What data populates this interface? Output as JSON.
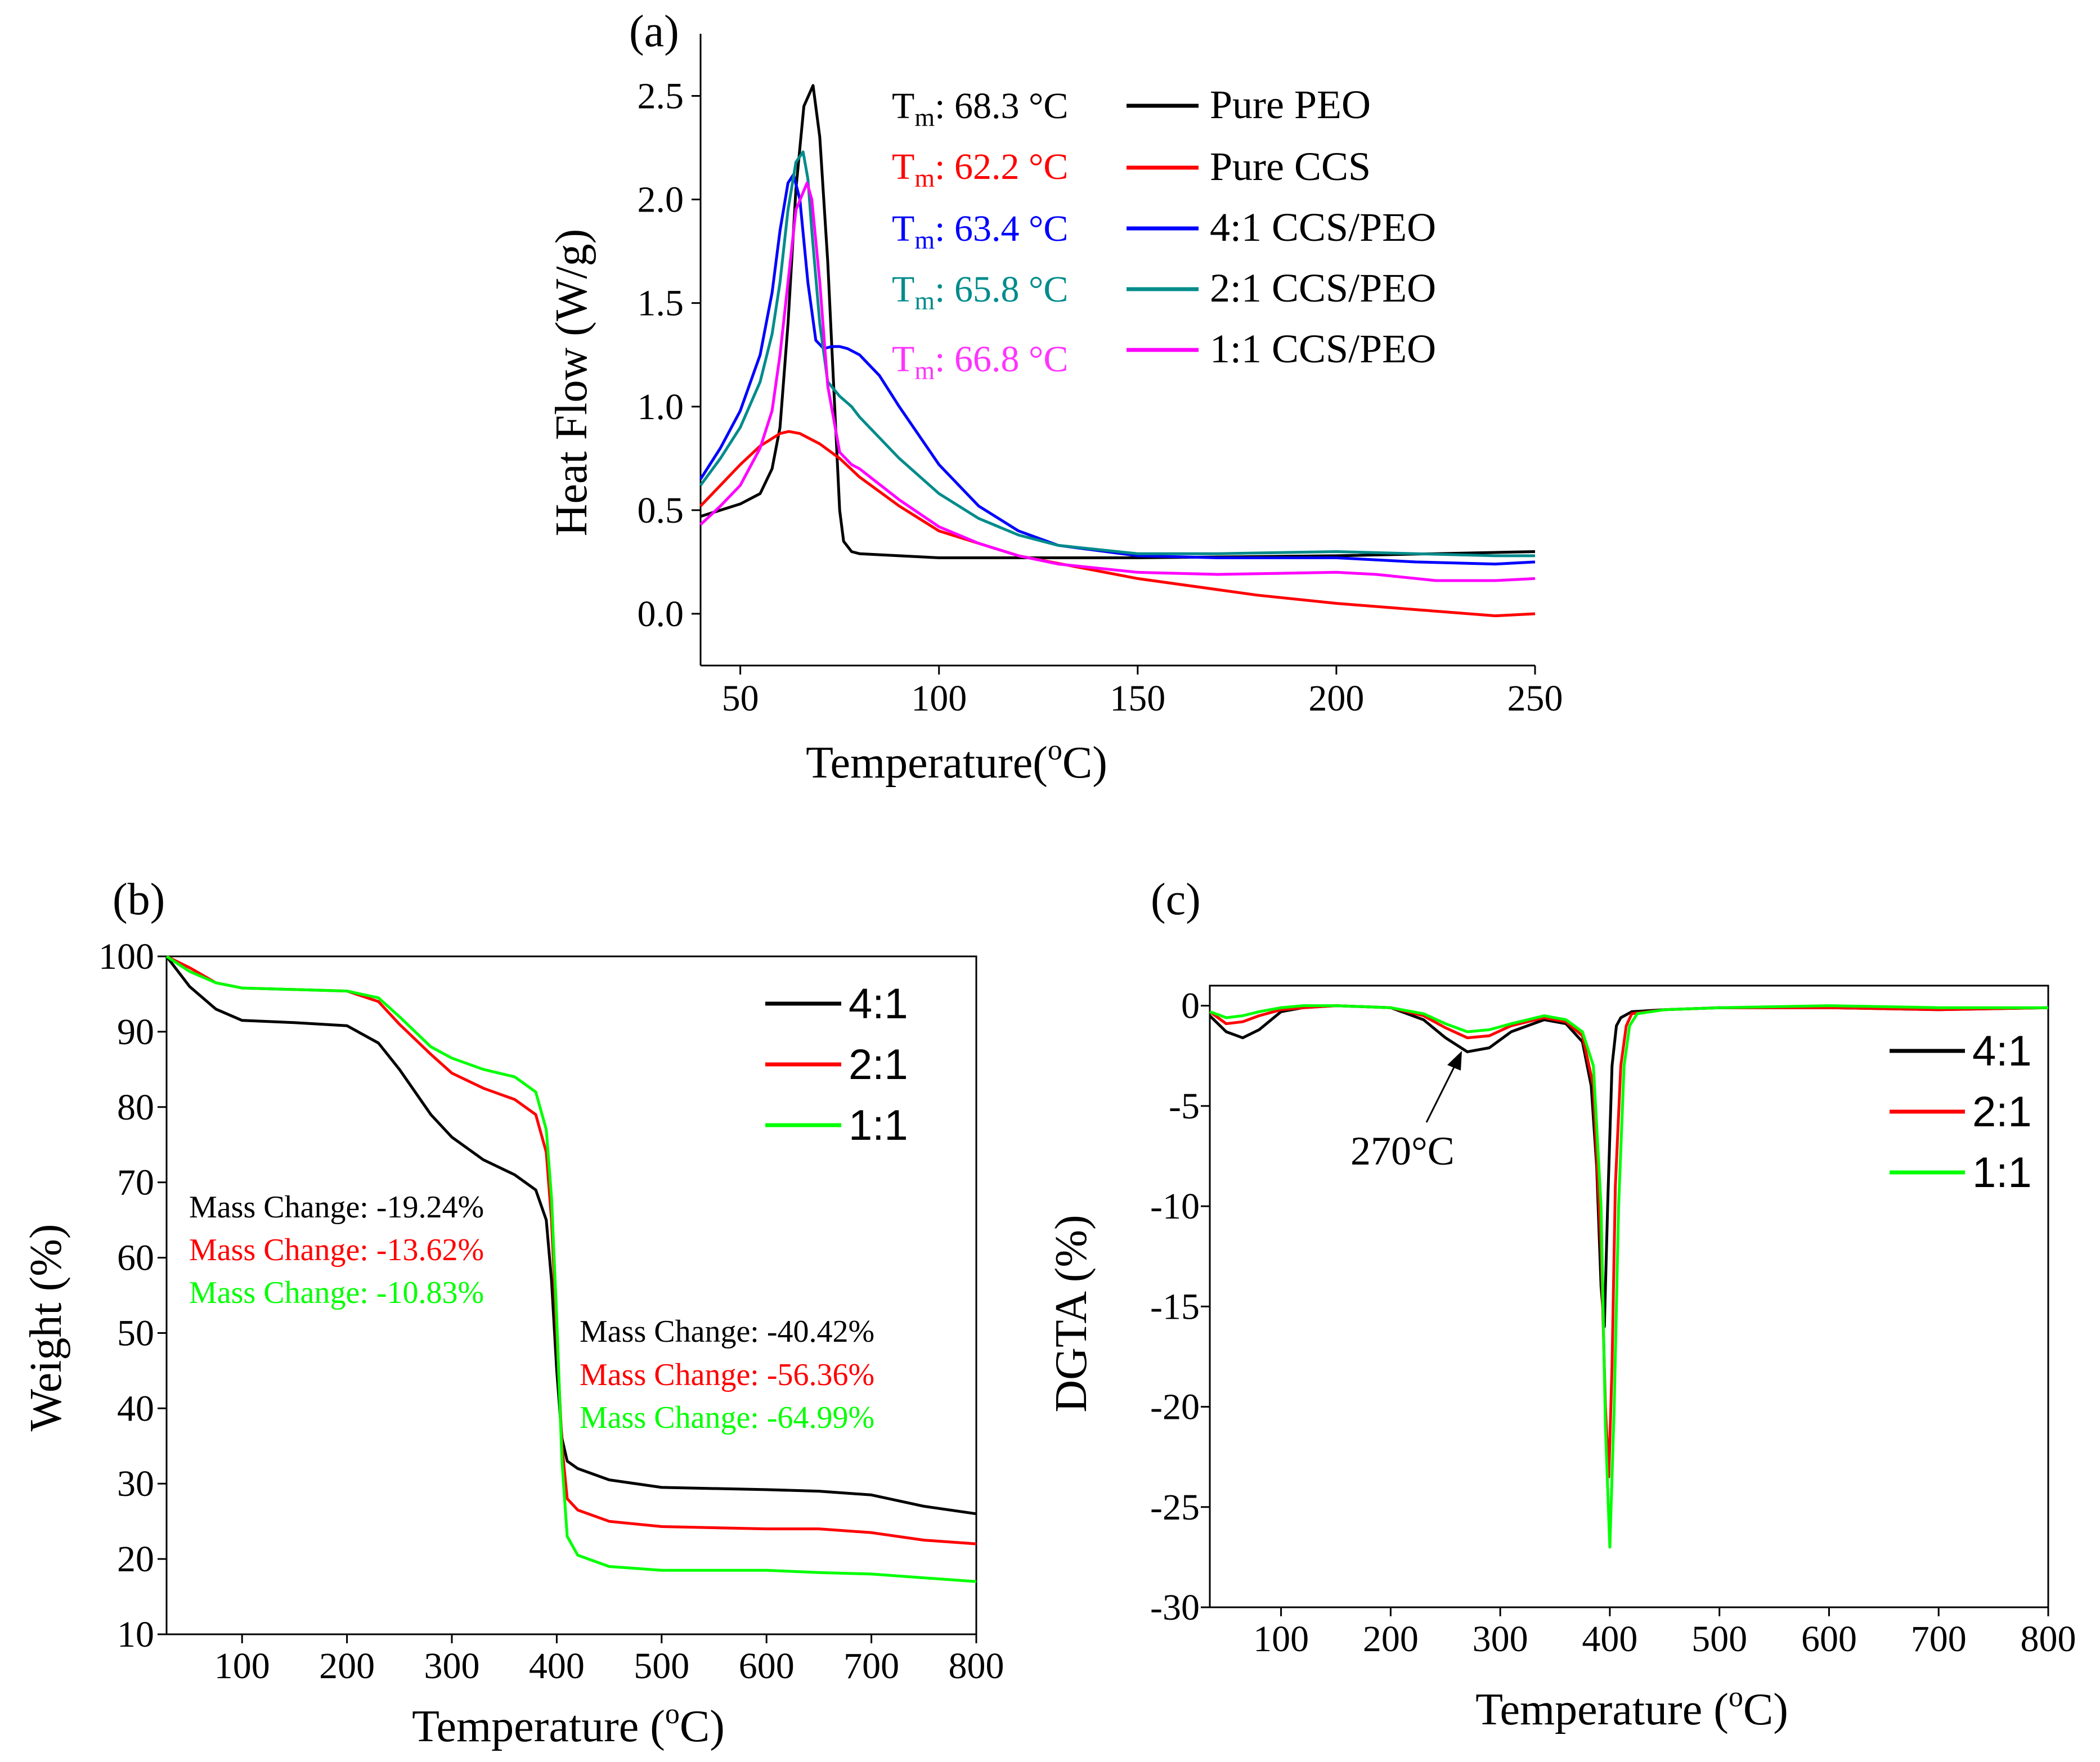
{
  "chart_data": [
    {
      "type": "line",
      "panel_label": "(a)",
      "xlabel": "Temperature(",
      "xlabel_sup": "o",
      "xlabel_tail": "C)",
      "ylabel": "Heat Flow (W/g)",
      "xlim": [
        40,
        250
      ],
      "ylim": [
        -0.25,
        2.8
      ],
      "xticks": [
        50,
        100,
        150,
        200,
        250
      ],
      "yticks": [
        0.0,
        0.5,
        1.0,
        1.5,
        2.0,
        2.5
      ],
      "ytick_labels": [
        "0.0",
        "0.5",
        "1.0",
        "1.5",
        "2.0",
        "2.5"
      ],
      "legend_position": "top-right",
      "annotations": [
        {
          "base": "T",
          "sub": "m",
          "text": ": 68.3 °C",
          "color": "#000000"
        },
        {
          "base": "T",
          "sub": "m",
          "text": ": 62.2 °C",
          "color": "#ff0000"
        },
        {
          "base": "T",
          "sub": "m",
          "text": ": 63.4 °C",
          "color": "#0000ff"
        },
        {
          "base": "T",
          "sub": "m",
          "text": ": 65.8 °C",
          "color": "#008b8b"
        },
        {
          "base": "T",
          "sub": "m",
          "text": ": 66.8 °C",
          "color": "#ff33ff"
        }
      ],
      "series": [
        {
          "name": "Pure PEO",
          "color": "#000000",
          "x": [
            40,
            50,
            55,
            58,
            60,
            62,
            64,
            66,
            68.3,
            70,
            72,
            74,
            75,
            76,
            78,
            80,
            90,
            100,
            120,
            150,
            200,
            250
          ],
          "y": [
            0.47,
            0.53,
            0.58,
            0.7,
            0.9,
            1.4,
            2.05,
            2.45,
            2.55,
            2.3,
            1.7,
            0.9,
            0.5,
            0.35,
            0.3,
            0.29,
            0.28,
            0.27,
            0.27,
            0.27,
            0.28,
            0.3
          ]
        },
        {
          "name": "Pure CCS",
          "color": "#ff0000",
          "x": [
            40,
            45,
            50,
            55,
            60,
            62.2,
            65,
            70,
            75,
            80,
            90,
            100,
            120,
            150,
            180,
            200,
            220,
            240,
            250
          ],
          "y": [
            0.52,
            0.62,
            0.72,
            0.81,
            0.87,
            0.88,
            0.87,
            0.82,
            0.75,
            0.66,
            0.52,
            0.4,
            0.28,
            0.17,
            0.09,
            0.05,
            0.02,
            -0.01,
            0.0
          ]
        },
        {
          "name": "4:1 CCS/PEO",
          "color": "#0000ff",
          "x": [
            40,
            45,
            50,
            55,
            58,
            60,
            62,
            63.4,
            65,
            67,
            69,
            71,
            73,
            75,
            77,
            80,
            85,
            90,
            100,
            110,
            120,
            130,
            150,
            170,
            200,
            220,
            240,
            250
          ],
          "y": [
            0.65,
            0.8,
            0.98,
            1.25,
            1.55,
            1.85,
            2.08,
            2.12,
            2.0,
            1.6,
            1.32,
            1.28,
            1.29,
            1.29,
            1.28,
            1.25,
            1.15,
            1.0,
            0.72,
            0.52,
            0.4,
            0.33,
            0.28,
            0.27,
            0.27,
            0.25,
            0.24,
            0.25
          ]
        },
        {
          "name": "2:1 CCS/PEO",
          "color": "#008b8b",
          "x": [
            40,
            45,
            50,
            55,
            58,
            60,
            62,
            64,
            65.8,
            67,
            68,
            70,
            72,
            75,
            78,
            80,
            90,
            100,
            110,
            120,
            130,
            150,
            170,
            200,
            220,
            240,
            250
          ],
          "y": [
            0.62,
            0.75,
            0.9,
            1.12,
            1.35,
            1.6,
            1.95,
            2.18,
            2.23,
            2.1,
            1.85,
            1.4,
            1.12,
            1.05,
            1.0,
            0.95,
            0.75,
            0.58,
            0.46,
            0.38,
            0.33,
            0.29,
            0.29,
            0.3,
            0.29,
            0.28,
            0.28
          ]
        },
        {
          "name": "1:1 CCS/PEO",
          "color": "#ff00ff",
          "x": [
            40,
            45,
            50,
            55,
            58,
            60,
            62,
            64,
            66.8,
            68,
            70,
            72,
            75,
            78,
            80,
            90,
            100,
            110,
            120,
            130,
            150,
            170,
            200,
            210,
            225,
            240,
            250
          ],
          "y": [
            0.43,
            0.52,
            0.62,
            0.8,
            0.98,
            1.25,
            1.6,
            1.95,
            2.08,
            2.0,
            1.6,
            1.1,
            0.78,
            0.72,
            0.7,
            0.55,
            0.42,
            0.34,
            0.28,
            0.24,
            0.2,
            0.19,
            0.2,
            0.19,
            0.16,
            0.16,
            0.17
          ]
        }
      ]
    },
    {
      "type": "line",
      "panel_label": "(b)",
      "xlabel": "Temperature (",
      "xlabel_sup": "o",
      "xlabel_tail": "C)",
      "ylabel": "Weight (%)",
      "xlim": [
        28,
        800
      ],
      "ylim": [
        10,
        100
      ],
      "xticks": [
        100,
        200,
        300,
        400,
        500,
        600,
        700,
        800
      ],
      "yticks": [
        10,
        20,
        30,
        40,
        50,
        60,
        70,
        80,
        90,
        100
      ],
      "legend_position": "top-right",
      "annotations": [
        {
          "text": "Mass Change: -19.24%",
          "color": "#000000"
        },
        {
          "text": "Mass Change: -13.62%",
          "color": "#ff0000"
        },
        {
          "text": "Mass Change: -10.83%",
          "color": "#00ff00"
        },
        {
          "text": "Mass Change: -40.42%",
          "color": "#000000"
        },
        {
          "text": "Mass Change: -56.36%",
          "color": "#ff0000"
        },
        {
          "text": "Mass Change: -64.99%",
          "color": "#00ff00"
        }
      ],
      "series": [
        {
          "name": "4:1",
          "color": "#000000",
          "x": [
            28,
            50,
            75,
            100,
            150,
            200,
            230,
            250,
            280,
            300,
            330,
            360,
            380,
            390,
            395,
            400,
            405,
            410,
            420,
            450,
            500,
            600,
            650,
            700,
            750,
            800
          ],
          "y": [
            100,
            96,
            93,
            91.5,
            91.2,
            90.8,
            88.5,
            85,
            79,
            76,
            73,
            71,
            69,
            65,
            57,
            45,
            36,
            33,
            32,
            30.5,
            29.5,
            29.2,
            29,
            28.5,
            27,
            26
          ]
        },
        {
          "name": "2:1",
          "color": "#ff0000",
          "x": [
            28,
            50,
            75,
            100,
            150,
            200,
            230,
            250,
            280,
            300,
            330,
            360,
            380,
            390,
            395,
            400,
            405,
            410,
            420,
            450,
            500,
            600,
            650,
            700,
            750,
            800
          ],
          "y": [
            100,
            98.5,
            96.5,
            95.8,
            95.6,
            95.4,
            94,
            91,
            87,
            84.5,
            82.5,
            81,
            79,
            74,
            65,
            50,
            35,
            28,
            26.5,
            25,
            24.3,
            24,
            24,
            23.5,
            22.5,
            22
          ]
        },
        {
          "name": "1:1",
          "color": "#00ff00",
          "x": [
            28,
            50,
            75,
            100,
            150,
            200,
            230,
            250,
            280,
            300,
            330,
            360,
            380,
            390,
            395,
            400,
            405,
            410,
            420,
            450,
            500,
            600,
            650,
            700,
            750,
            800
          ],
          "y": [
            100,
            98,
            96.5,
            95.8,
            95.6,
            95.4,
            94.5,
            92,
            88,
            86.5,
            85,
            84,
            82,
            77,
            68,
            52,
            33,
            23,
            20.5,
            19,
            18.5,
            18.5,
            18.2,
            18,
            17.5,
            17
          ]
        }
      ],
      "legend": [
        "4:1",
        "2:1",
        "1:1"
      ]
    },
    {
      "type": "line",
      "panel_label": "(c)",
      "xlabel": "Temperature (",
      "xlabel_sup": "o",
      "xlabel_tail": "C)",
      "ylabel": "DGTA (%)",
      "xlim": [
        35,
        800
      ],
      "ylim": [
        -30,
        1
      ],
      "xticks": [
        100,
        200,
        300,
        400,
        500,
        600,
        700,
        800
      ],
      "yticks": [
        0,
        -5,
        -10,
        -15,
        -20,
        -25,
        -30
      ],
      "ytick_labels": [
        "0",
        "-5",
        "-10",
        "-15",
        "-20",
        "-25",
        "-30"
      ],
      "legend_position": "right",
      "annotations": [
        {
          "text": "270°C",
          "color": "#000000",
          "x": 270,
          "y": -2.5
        }
      ],
      "series": [
        {
          "name": "4:1",
          "color": "#000000",
          "x": [
            35,
            50,
            65,
            80,
            100,
            120,
            150,
            200,
            230,
            250,
            270,
            290,
            310,
            340,
            360,
            375,
            383,
            388,
            392,
            395,
            398,
            402,
            406,
            410,
            420,
            450,
            500,
            600,
            700,
            800
          ],
          "y": [
            -0.5,
            -1.3,
            -1.6,
            -1.2,
            -0.3,
            -0.1,
            0,
            -0.1,
            -0.7,
            -1.6,
            -2.3,
            -2.1,
            -1.3,
            -0.7,
            -0.9,
            -1.8,
            -4,
            -8,
            -14,
            -16,
            -10,
            -3,
            -1,
            -0.6,
            -0.3,
            -0.2,
            -0.1,
            -0.1,
            -0.2,
            -0.1
          ]
        },
        {
          "name": "2:1",
          "color": "#ff0000",
          "x": [
            35,
            50,
            65,
            80,
            100,
            120,
            150,
            200,
            230,
            250,
            270,
            290,
            310,
            340,
            360,
            375,
            385,
            392,
            396,
            399,
            402,
            405,
            410,
            415,
            420,
            450,
            500,
            600,
            700,
            800
          ],
          "y": [
            -0.3,
            -0.9,
            -0.8,
            -0.5,
            -0.2,
            -0.1,
            0,
            -0.1,
            -0.5,
            -1.1,
            -1.6,
            -1.5,
            -1.0,
            -0.6,
            -0.8,
            -1.5,
            -4,
            -12,
            -20,
            -23.5,
            -18,
            -9,
            -3,
            -1,
            -0.4,
            -0.2,
            -0.1,
            -0.1,
            -0.2,
            -0.1
          ]
        },
        {
          "name": "1:1",
          "color": "#00ff00",
          "x": [
            35,
            50,
            65,
            80,
            100,
            120,
            150,
            200,
            230,
            250,
            270,
            290,
            310,
            340,
            360,
            375,
            385,
            392,
            396,
            400,
            404,
            408,
            413,
            418,
            425,
            450,
            500,
            600,
            700,
            800
          ],
          "y": [
            -0.3,
            -0.6,
            -0.5,
            -0.3,
            -0.1,
            0,
            0,
            -0.1,
            -0.4,
            -0.9,
            -1.3,
            -1.2,
            -0.9,
            -0.5,
            -0.7,
            -1.3,
            -3,
            -10,
            -21,
            -27,
            -20,
            -10,
            -3,
            -1,
            -0.4,
            -0.2,
            -0.1,
            0,
            -0.1,
            -0.1
          ]
        }
      ],
      "legend": [
        "4:1",
        "2:1",
        "1:1"
      ]
    }
  ]
}
